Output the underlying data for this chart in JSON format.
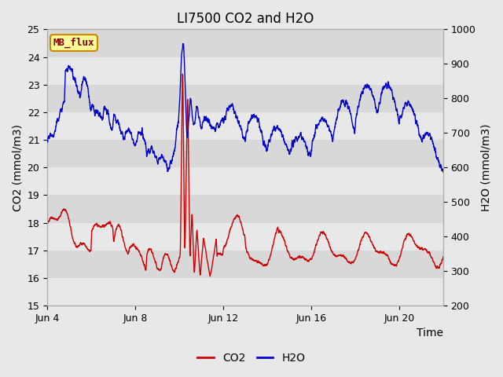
{
  "title": "LI7500 CO2 and H2O",
  "xlabel": "Time",
  "ylabel_left": "CO2 (mmol/m3)",
  "ylabel_right": "H2O (mmol/m3)",
  "ylim_left": [
    15.0,
    25.0
  ],
  "ylim_right": [
    200,
    1000
  ],
  "yticks_left": [
    15.0,
    16.0,
    17.0,
    18.0,
    19.0,
    20.0,
    21.0,
    22.0,
    23.0,
    24.0,
    25.0
  ],
  "yticks_right": [
    200,
    300,
    400,
    500,
    600,
    700,
    800,
    900,
    1000
  ],
  "xtick_labels": [
    "Jun 4",
    "Jun 8",
    "Jun 12",
    "Jun 16",
    "Jun 20"
  ],
  "xtick_positions": [
    4,
    8,
    12,
    16,
    20
  ],
  "xlim": [
    4,
    22
  ],
  "co2_color": "#cc0000",
  "h2o_color": "#0000cc",
  "fig_bg": "#e8e8e8",
  "band_light": "#e8e8e8",
  "band_dark": "#d8d8d8",
  "grid_color": "#ffffff",
  "legend_label": "MB_flux",
  "legend_box_facecolor": "#ffff99",
  "legend_box_edgecolor": "#cc8800",
  "title_fontsize": 12,
  "axis_label_fontsize": 10,
  "tick_fontsize": 9,
  "legend_fontsize": 10
}
